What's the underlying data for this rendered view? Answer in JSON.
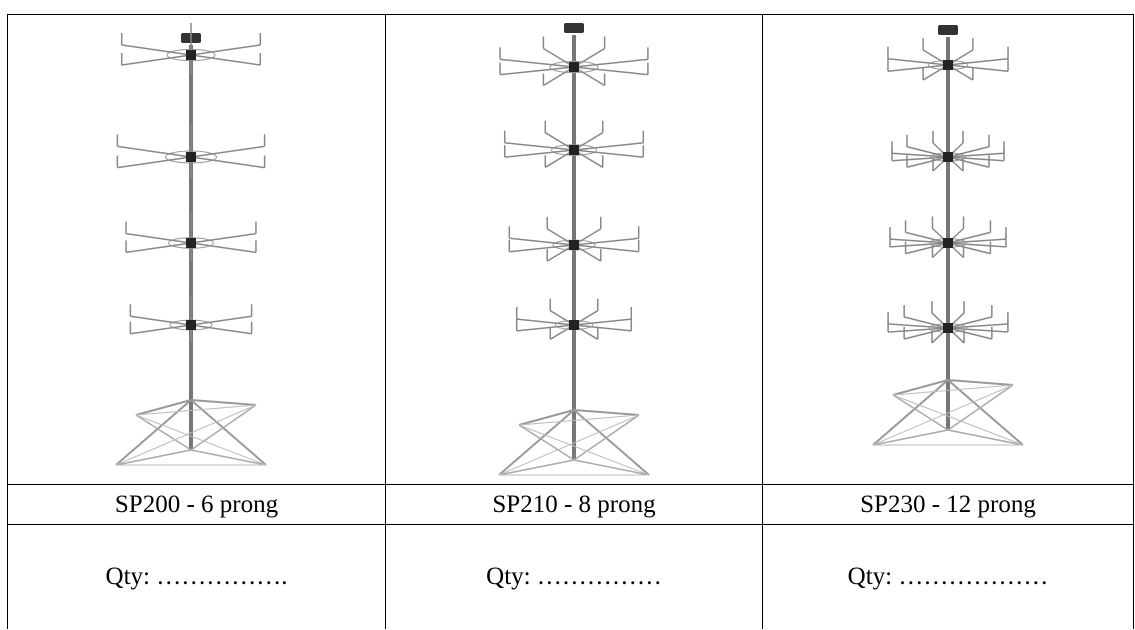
{
  "table": {
    "rows": [
      [
        "SP200 - 6 prong",
        "SP210 - 8 prong",
        "SP230 - 12 prong"
      ],
      [
        "Qty: …………….",
        "Qty: ……………",
        "Qty: ………………"
      ]
    ]
  }
}
